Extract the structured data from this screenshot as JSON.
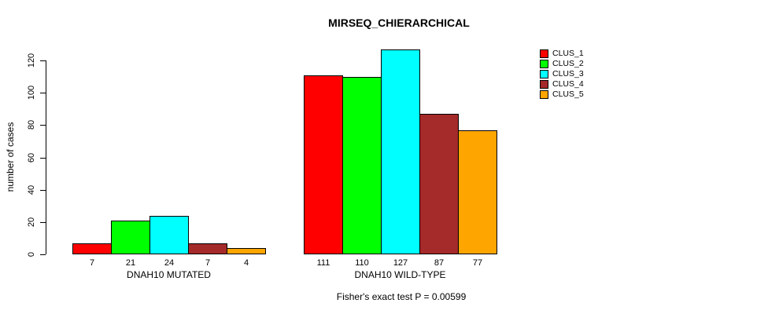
{
  "chart_data": {
    "type": "bar",
    "title": "MIRSEQ_CHIERARCHICAL",
    "xlabel": "",
    "ylabel": "number of cases",
    "annotation": "Fisher's exact test P = 0.00599",
    "categories": [
      "DNAH10 MUTATED",
      "DNAH10 WILD-TYPE"
    ],
    "series": [
      {
        "name": "CLUS_1",
        "color": "#ff0000",
        "values": [
          7,
          111
        ]
      },
      {
        "name": "CLUS_2",
        "color": "#00ff00",
        "values": [
          21,
          110
        ]
      },
      {
        "name": "CLUS_3",
        "color": "#00ffff",
        "values": [
          24,
          127
        ]
      },
      {
        "name": "CLUS_4",
        "color": "#a52a2a",
        "values": [
          7,
          87
        ]
      },
      {
        "name": "CLUS_5",
        "color": "#ffa500",
        "values": [
          4,
          77
        ]
      }
    ],
    "yticks": [
      0,
      20,
      40,
      60,
      80,
      100,
      120
    ],
    "ylim": [
      0,
      127
    ],
    "grid": false,
    "bar_value_labels_shown": true,
    "legend_position": "top-right",
    "bar_border_color": "#000000",
    "background_color": "#ffffff"
  }
}
